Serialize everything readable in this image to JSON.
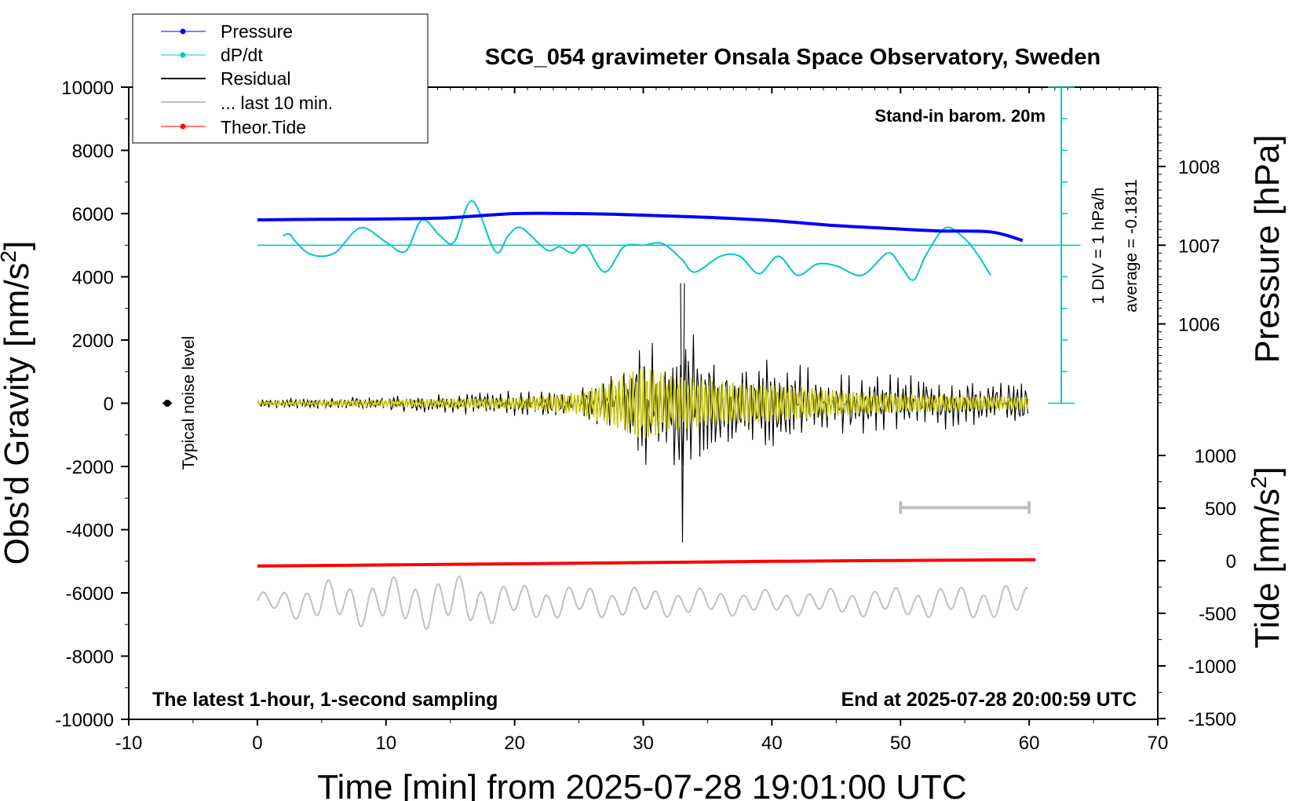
{
  "chart_data": {
    "type": "line",
    "title": "SCG_054 gravimeter Onsala Space Observatory, Sweden",
    "xlabel": "Time [min] from 2025-07-28 19:01:00 UTC",
    "ylabel": "Obs'd Gravity [nm/s",
    "ylabel_sup": "2",
    "ylabel_close": "]",
    "y2label": "Pressure [hPa]",
    "y3label": "Tide [nm/s",
    "y3label_sup": "2",
    "y3label_close": "]",
    "xlim": [
      -10,
      70
    ],
    "ylim": [
      -10000,
      10000
    ],
    "x_ticks": [
      -10,
      0,
      10,
      20,
      30,
      40,
      50,
      60,
      70
    ],
    "y_ticks": [
      10000,
      8000,
      6000,
      4000,
      2000,
      0,
      -2000,
      -4000,
      -6000,
      -8000,
      -10000
    ],
    "pressure_ticks": [
      1008,
      1007,
      1006
    ],
    "tide_ticks": [
      1000,
      500,
      0,
      -500,
      -1000,
      -1500
    ],
    "tide_axis_range": [
      -1500,
      1000
    ],
    "annotations": {
      "barometer": "Stand-in barom. 20m",
      "latest": "The latest 1-hour, 1-second sampling",
      "end_time": "End at 2025-07-28 20:00:59 UTC",
      "noise": "Typical noise level",
      "div": "1 DIV = 1 hPa/h",
      "average": "average = -0.1811"
    },
    "legend": {
      "placement": "top-left",
      "entries": [
        {
          "label": "Pressure",
          "color": "#0000ff",
          "marker": true
        },
        {
          "label": "dP/dt",
          "color": "#00c8c8",
          "marker": true
        },
        {
          "label": "Residual",
          "color": "#000000",
          "marker": false
        },
        {
          "label": "... last 10 min.",
          "color": "#c0c0c0",
          "marker": false
        },
        {
          "label": "Theor.Tide",
          "color": "#ff0000",
          "marker": true
        }
      ]
    },
    "series": [
      {
        "name": "Pressure",
        "color": "#0000ff",
        "axis": "gravity_units",
        "x": [
          0,
          5,
          10,
          15,
          20,
          25,
          30,
          35,
          40,
          45,
          50,
          53,
          57,
          59.5
        ],
        "values": [
          5800,
          5820,
          5830,
          5870,
          6000,
          6000,
          5950,
          5880,
          5780,
          5620,
          5510,
          5450,
          5420,
          5150
        ]
      },
      {
        "name": "dP/dt",
        "color": "#00c8c8",
        "axis": "gravity_units",
        "baseline": 5000,
        "x": [
          2,
          2.5,
          3,
          4.2,
          6,
          8,
          10,
          11.5,
          12.8,
          14.2,
          15.3,
          16.7,
          18.5,
          19.5,
          20.5,
          22.5,
          23.5,
          24.5,
          25.5,
          27,
          28.5,
          30,
          31.5,
          33,
          34,
          36,
          37.5,
          39,
          40.5,
          42,
          43.5,
          45,
          47,
          49,
          50,
          51,
          52,
          53.5,
          55,
          56,
          57
        ],
        "values": [
          5300,
          5350,
          5100,
          4700,
          4750,
          5550,
          5100,
          4800,
          5800,
          5300,
          5100,
          6400,
          4800,
          5300,
          5550,
          4850,
          4950,
          4750,
          5000,
          4150,
          4950,
          5000,
          5050,
          4550,
          4150,
          4650,
          4650,
          4100,
          4650,
          4050,
          4400,
          4350,
          4050,
          4750,
          4350,
          3900,
          4700,
          5550,
          5200,
          4700,
          4050
        ]
      },
      {
        "name": "Theor.Tide",
        "color": "#ff0000",
        "axis": "gravity_units",
        "x": [
          0,
          20,
          40,
          60.5
        ],
        "values": [
          -5150,
          -5080,
          -5000,
          -4950
        ]
      }
    ],
    "residual_envelope": {
      "name": "Residual",
      "color": "#000000",
      "center": 0,
      "x": [
        0,
        5,
        10,
        15,
        20,
        25,
        27,
        29,
        30,
        31,
        32,
        33,
        34,
        35,
        36,
        38,
        40,
        42,
        45,
        50,
        55,
        60
      ],
      "amplitude": [
        150,
        200,
        300,
        350,
        400,
        450,
        800,
        1300,
        2400,
        1700,
        2000,
        3800,
        2200,
        2000,
        1600,
        1400,
        2000,
        1300,
        1000,
        900,
        800,
        700
      ]
    },
    "filtered_overlay": {
      "color": "#c8c800",
      "x": [
        0,
        10,
        20,
        25,
        28,
        30,
        32,
        35,
        40,
        45,
        50,
        55,
        60
      ],
      "amplitude": [
        60,
        120,
        180,
        350,
        800,
        1200,
        900,
        700,
        600,
        400,
        300,
        250,
        200
      ]
    },
    "last_10_min": {
      "color": "#c0c0c0",
      "center": -6300,
      "x": [
        0,
        5,
        10,
        15,
        20,
        30,
        40,
        50,
        60
      ],
      "amplitude": [
        300,
        700,
        800,
        900,
        600,
        500,
        400,
        500,
        600
      ],
      "bar_x": [
        50,
        60
      ],
      "bar_y": -3300
    },
    "noise_point": {
      "x": -7,
      "y": 0
    }
  }
}
